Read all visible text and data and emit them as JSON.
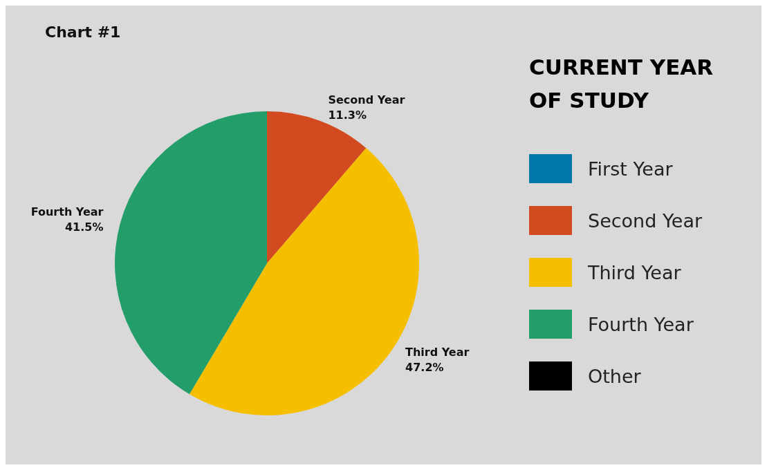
{
  "chart_data": {
    "type": "pie",
    "title": "Chart #1",
    "legend_title": "CURRENT YEAR OF STUDY",
    "categories": [
      "First Year",
      "Second Year",
      "Third Year",
      "Fourth Year",
      "Other"
    ],
    "values": [
      0,
      11.3,
      47.2,
      41.5,
      0
    ],
    "colors": [
      "#0077a8",
      "#d24a1f",
      "#f5bf00",
      "#239e6b",
      "#000000"
    ],
    "value_labels": [
      null,
      "11.3%",
      "47.2%",
      "41.5%",
      null
    ],
    "legend": "right"
  }
}
